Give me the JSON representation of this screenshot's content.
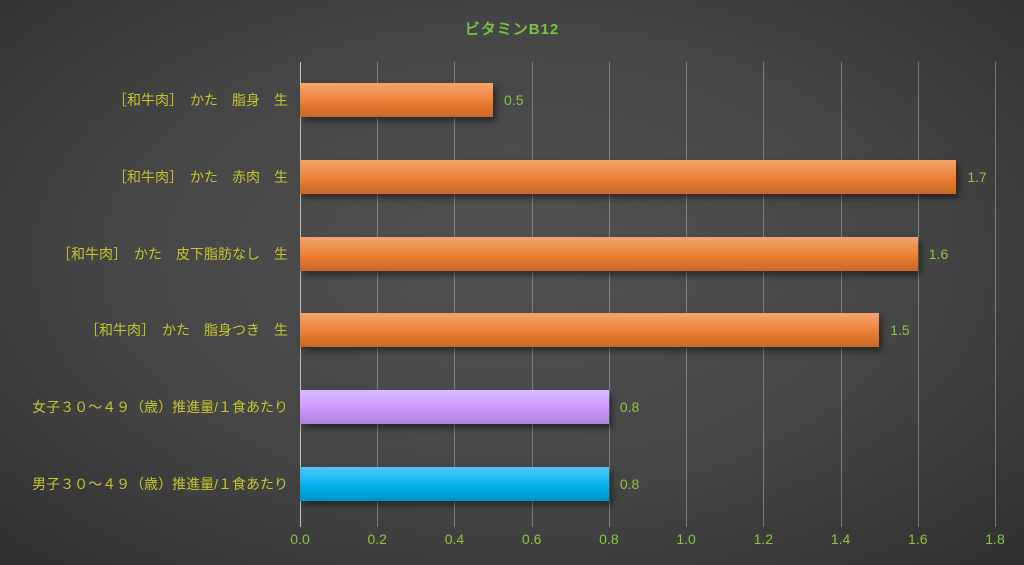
{
  "chart_data": {
    "type": "bar",
    "orientation": "horizontal",
    "title": "ビタミンB12",
    "categories": [
      "［和牛肉］　かた　脂身　生",
      "［和牛肉］　かた　赤肉　生",
      "［和牛肉］　かた　皮下脂肪なし　生",
      "［和牛肉］　かた　脂身つき　生",
      "女子３０～４９（歳）推進量/１食あたり",
      "男子３０～４９（歳）推進量/１食あたり"
    ],
    "values": [
      0.5,
      1.7,
      1.6,
      1.5,
      0.8,
      0.8
    ],
    "value_labels": [
      "0.5",
      "1.7",
      "1.6",
      "1.5",
      "0.8",
      "0.8"
    ],
    "bar_colors": [
      "#ED7D31",
      "#ED7D31",
      "#ED7D31",
      "#ED7D31",
      "#CC99FF",
      "#00B0F0"
    ],
    "xlim": [
      0,
      1.8
    ],
    "x_ticks": [
      "0.0",
      "0.2",
      "0.4",
      "0.6",
      "0.8",
      "1.0",
      "1.2",
      "1.4",
      "1.6",
      "1.8"
    ],
    "x_tick_values": [
      0.0,
      0.2,
      0.4,
      0.6,
      0.8,
      1.0,
      1.2,
      1.4,
      1.6,
      1.8
    ],
    "grid": true,
    "legend": "none",
    "xlabel": "",
    "ylabel": ""
  },
  "colors": {
    "title_text": "#77C143",
    "category_label_text": "#C6C62E",
    "value_label_text": "#8CC63F",
    "tick_label_text": "#8CC63F",
    "axis_line": "#C2C2C2",
    "gridline": "rgba(170,170,170,0.55)"
  }
}
